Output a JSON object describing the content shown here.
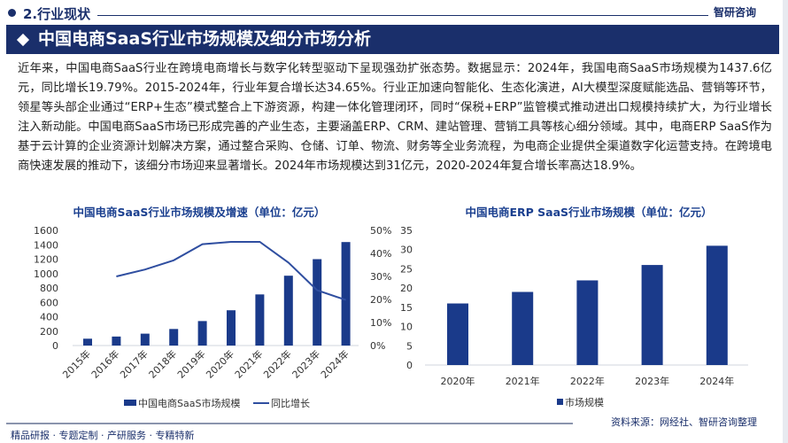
{
  "header": {
    "section": "2.行业现状",
    "logo": "智研咨询",
    "banner": "中国电商SaaS行业市场规模及细分市场分析"
  },
  "paragraph": "近年来，中国电商SaaS行业在跨境电商增长与数字化转型驱动下呈现强劲扩张态势。数据显示：2024年，我国电商SaaS市场规模为1437.6亿元，同比增长19.79%。2015-2024年，行业年复合增长达34.65%。行业正加速向智能化、生态化演进，AI大模型深度赋能选品、营销等环节，领星等头部企业通过“ERP+生态”模式整合上下游资源，构建一体化管理闭环，同时“保税+ERP”监管模式推动进出口规模持续扩大，为行业增长注入新动能。中国电商SaaS市场已形成完善的产业生态，主要涵盖ERP、CRM、建站管理、营销工具等核心细分领域。其中，电商ERP SaaS作为基于云计算的企业资源计划解决方案，通过整合采购、仓储、订单、物流、财务等全业务流程，为电商企业提供全渠道数字化运营支持。在跨境电商快速发展的推动下，该细分市场迎来显著增长。2024年市场规模达到31亿元，2020-2024年复合增长率高达18.9%。",
  "chart_data": [
    {
      "type": "bar+line",
      "title": "中国电商SaaS行业市场规模及增速（单位：亿元）",
      "categories": [
        "2015年",
        "2016年",
        "2017年",
        "2018年",
        "2019年",
        "2020年",
        "2021年",
        "2022年",
        "2023年",
        "2024年"
      ],
      "series": [
        {
          "name": "中国电商SaaS市场规模",
          "type": "bar",
          "axis": "left",
          "values": [
            95,
            125,
            165,
            230,
            340,
            490,
            710,
            970,
            1200,
            1437.6
          ]
        },
        {
          "name": "同比增长",
          "type": "line",
          "axis": "right",
          "values": [
            null,
            30,
            33,
            37,
            44,
            45,
            45,
            36,
            24,
            19.79
          ]
        }
      ],
      "ylim": [
        0,
        1600
      ],
      "yticks": [
        "0",
        "200",
        "400",
        "600",
        "800",
        "1000",
        "1200",
        "1400",
        "1600"
      ],
      "y2lim": [
        0,
        50
      ],
      "y2ticks": [
        "0%",
        "10%",
        "20%",
        "30%",
        "40%",
        "50%"
      ],
      "legend": "bottom",
      "grid": false,
      "color": "#1a3a8a"
    },
    {
      "type": "bar",
      "title": "中国电商ERP SaaS行业市场规模（单位：亿元）",
      "categories": [
        "2020年",
        "2021年",
        "2022年",
        "2023年",
        "2024年"
      ],
      "series": [
        {
          "name": "市场规模",
          "values": [
            16,
            19,
            22,
            26,
            31
          ]
        }
      ],
      "ylim": [
        0,
        35
      ],
      "yticks": [
        "0",
        "5",
        "10",
        "15",
        "20",
        "25",
        "30",
        "35"
      ],
      "legend": "bottom",
      "grid": false,
      "color": "#1a3a8a"
    }
  ],
  "footer": {
    "source": "资料来源：网经社、智研咨询整理",
    "slogan": "精品研报 · 专题定制 · 产研服务 · 专精特新"
  }
}
